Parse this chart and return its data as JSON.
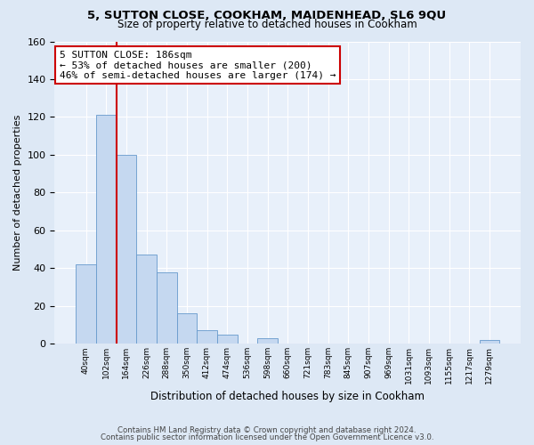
{
  "title1": "5, SUTTON CLOSE, COOKHAM, MAIDENHEAD, SL6 9QU",
  "title2": "Size of property relative to detached houses in Cookham",
  "xlabel": "Distribution of detached houses by size in Cookham",
  "ylabel": "Number of detached properties",
  "bar_labels": [
    "40sqm",
    "102sqm",
    "164sqm",
    "226sqm",
    "288sqm",
    "350sqm",
    "412sqm",
    "474sqm",
    "536sqm",
    "598sqm",
    "660sqm",
    "721sqm",
    "783sqm",
    "845sqm",
    "907sqm",
    "969sqm",
    "1031sqm",
    "1093sqm",
    "1155sqm",
    "1217sqm",
    "1279sqm"
  ],
  "bar_values": [
    42,
    121,
    100,
    47,
    38,
    16,
    7,
    5,
    0,
    3,
    0,
    0,
    0,
    0,
    0,
    0,
    0,
    0,
    0,
    0,
    2
  ],
  "bar_color": "#c5d8f0",
  "bar_edgecolor": "#6699cc",
  "vline_color": "#cc0000",
  "vline_x_idx": 2,
  "annotation_title": "5 SUTTON CLOSE: 186sqm",
  "annotation_line1": "← 53% of detached houses are smaller (200)",
  "annotation_line2": "46% of semi-detached houses are larger (174) →",
  "annotation_box_edgecolor": "#cc0000",
  "ylim": [
    0,
    160
  ],
  "yticks": [
    0,
    20,
    40,
    60,
    80,
    100,
    120,
    140,
    160
  ],
  "footer1": "Contains HM Land Registry data © Crown copyright and database right 2024.",
  "footer2": "Contains public sector information licensed under the Open Government Licence v3.0.",
  "bg_color": "#dde8f5",
  "plot_bg_color": "#e8f0fa"
}
